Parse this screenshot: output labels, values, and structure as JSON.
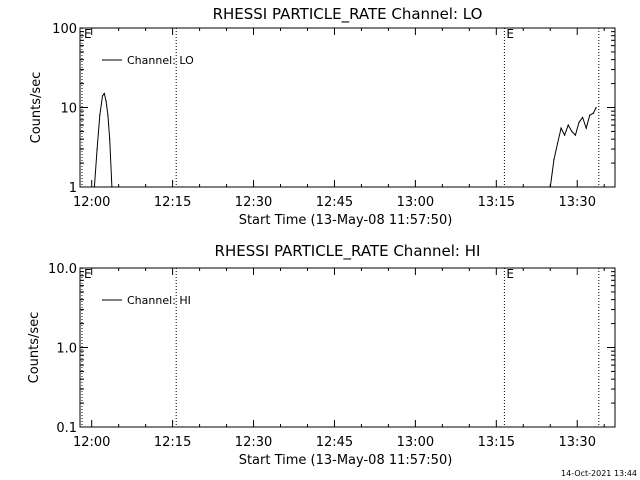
{
  "footer_timestamp": "14-Oct-2021 13:44",
  "chart_data": [
    {
      "type": "line",
      "title": "RHESSI PARTICLE_RATE Channel: LO",
      "xlabel": "Start Time (13-May-08 11:57:50)",
      "ylabel": "Counts/sec",
      "yscale": "log",
      "ylim": [
        1,
        100
      ],
      "yticks": [
        {
          "value": 1,
          "label": "1"
        },
        {
          "value": 10,
          "label": "10"
        },
        {
          "value": 100,
          "label": "100"
        }
      ],
      "xlim": [
        "11:57:50",
        "13:37:00"
      ],
      "xticks": [
        "12:00",
        "12:15",
        "12:30",
        "12:45",
        "13:00",
        "13:15",
        "13:30"
      ],
      "grid": false,
      "legend": {
        "label": "Channel: LO",
        "position": "top-left"
      },
      "markers": [
        {
          "time": "11:57:50",
          "label": "E"
        },
        {
          "time": "12:15:40",
          "label": ""
        },
        {
          "time": "13:16:30",
          "label": "E"
        },
        {
          "time": "13:34:00",
          "label": ""
        }
      ],
      "series": [
        {
          "segments": [
            {
              "x": [
                "12:00:30",
                "12:01:00",
                "12:01:30",
                "12:02:00",
                "12:02:20",
                "12:02:40",
                "12:03:00",
                "12:03:20",
                "12:03:45"
              ],
              "y": [
                1.0,
                3.0,
                8.0,
                14.0,
                15.0,
                12.0,
                8.0,
                4.0,
                1.0
              ]
            },
            {
              "x": [
                "13:25:00",
                "13:25:40",
                "13:26:20",
                "13:27:00",
                "13:27:40",
                "13:28:20",
                "13:29:00",
                "13:29:40",
                "13:30:20",
                "13:31:00",
                "13:31:40",
                "13:32:20",
                "13:33:00",
                "13:33:30"
              ],
              "y": [
                1.0,
                2.2,
                3.5,
                5.5,
                4.5,
                6.0,
                5.0,
                4.5,
                6.5,
                7.5,
                5.5,
                8.0,
                8.5,
                10.0
              ]
            }
          ]
        }
      ]
    },
    {
      "type": "line",
      "title": "RHESSI PARTICLE_RATE Channel: HI",
      "xlabel": "Start Time (13-May-08 11:57:50)",
      "ylabel": "Counts/sec",
      "yscale": "log",
      "ylim": [
        0.1,
        10
      ],
      "yticks": [
        {
          "value": 0.1,
          "label": "0.1"
        },
        {
          "value": 1,
          "label": "1.0"
        },
        {
          "value": 10,
          "label": "10.0"
        }
      ],
      "xlim": [
        "11:57:50",
        "13:37:00"
      ],
      "xticks": [
        "12:00",
        "12:15",
        "12:30",
        "12:45",
        "13:00",
        "13:15",
        "13:30"
      ],
      "grid": false,
      "legend": {
        "label": "Channel: HI",
        "position": "top-left"
      },
      "markers": [
        {
          "time": "11:57:50",
          "label": "E"
        },
        {
          "time": "12:15:40",
          "label": ""
        },
        {
          "time": "13:16:30",
          "label": "E"
        },
        {
          "time": "13:34:00",
          "label": ""
        }
      ],
      "series": [
        {
          "segments": []
        }
      ]
    }
  ]
}
